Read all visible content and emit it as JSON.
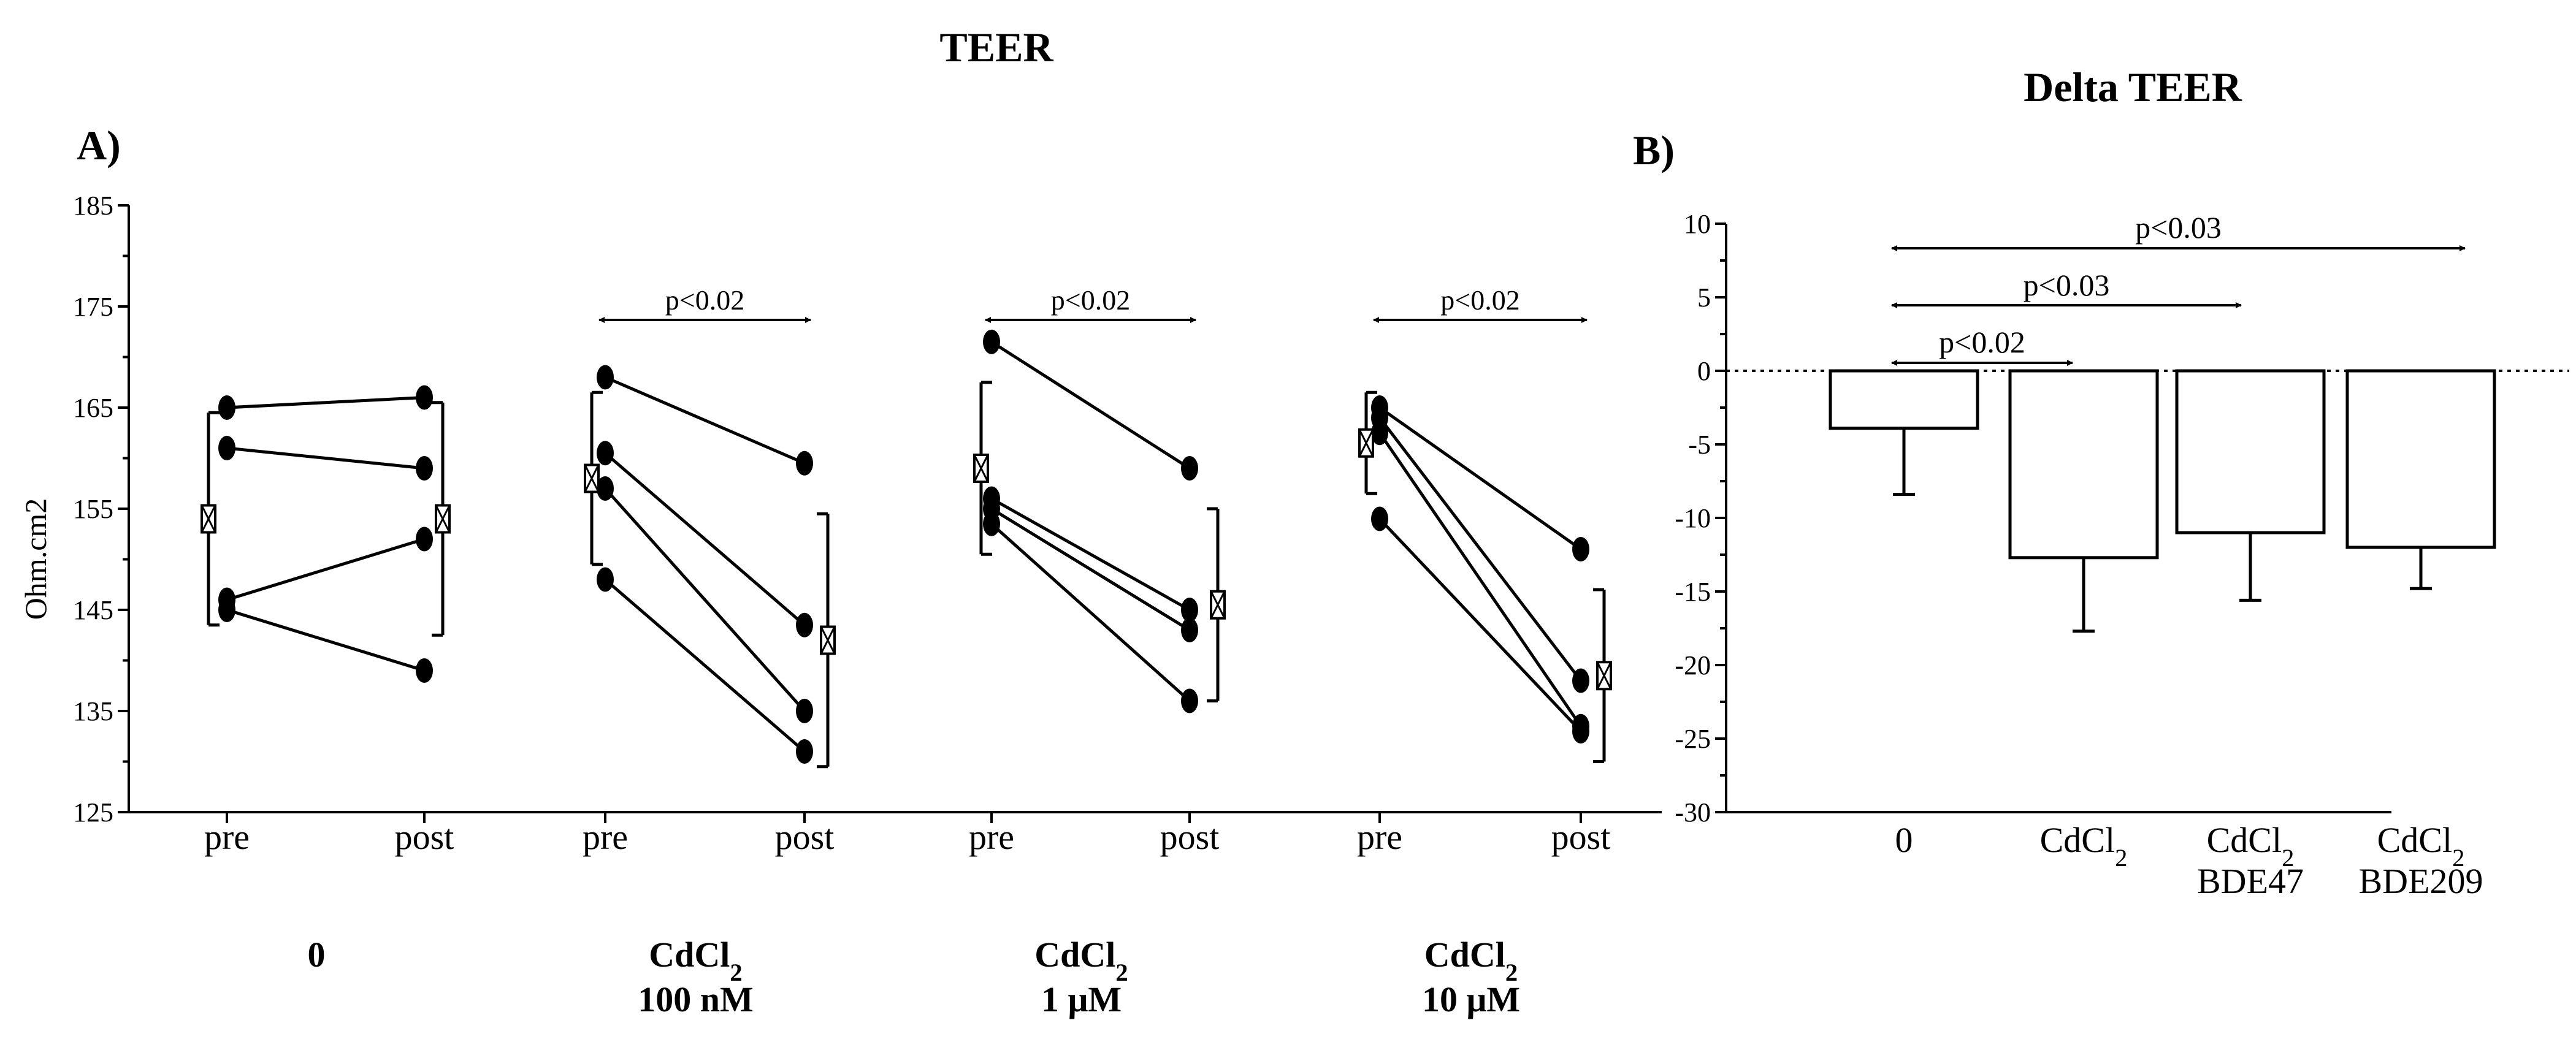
{
  "chart_data": [
    {
      "type": "line",
      "title": "TEER",
      "panel_label": "A)",
      "ylabel": "Ohm.cm2",
      "ylim": [
        125,
        185
      ],
      "yticks": [
        125,
        135,
        145,
        155,
        165,
        175,
        185
      ],
      "grid": false,
      "timepoints": [
        "pre",
        "post"
      ],
      "groups": [
        {
          "label_line1": "0",
          "label_sub": "",
          "label_line2": "",
          "subjects": [
            [
              165,
              166
            ],
            [
              161,
              159
            ],
            [
              146,
              152
            ],
            [
              145,
              139
            ]
          ],
          "mean": [
            154,
            154
          ],
          "error": [
            10.5,
            11.5
          ],
          "significance": ""
        },
        {
          "label_line1": "CdCl",
          "label_sub": "2",
          "label_line2": "100 nM",
          "subjects": [
            [
              168,
              159.5
            ],
            [
              160.5,
              143.5
            ],
            [
              157,
              135
            ],
            [
              148,
              131
            ]
          ],
          "mean": [
            158,
            142
          ],
          "error": [
            8.5,
            12.5
          ],
          "significance": "p<0.02"
        },
        {
          "label_line1": "CdCl",
          "label_sub": "2",
          "label_line2": "1 μM",
          "subjects": [
            [
              171.5,
              159
            ],
            [
              156,
              145
            ],
            [
              155,
              143
            ],
            [
              153.5,
              136
            ]
          ],
          "mean": [
            159,
            145.5
          ],
          "error": [
            8.5,
            9.5
          ],
          "significance": "p<0.02"
        },
        {
          "label_line1": "CdCl",
          "label_sub": "2",
          "label_line2": "10 μM",
          "subjects": [
            [
              165,
              151
            ],
            [
              164,
              138
            ],
            [
              162.5,
              133.5
            ],
            [
              154,
              133
            ]
          ],
          "mean": [
            161.5,
            138.5
          ],
          "error": [
            5,
            8.5
          ],
          "significance": "p<0.02"
        }
      ]
    },
    {
      "type": "bar",
      "title": "Delta TEER",
      "panel_label": "B)",
      "ylim": [
        -30,
        10
      ],
      "yticks": [
        10,
        5,
        0,
        -5,
        -10,
        -15,
        -20,
        -25,
        -30
      ],
      "grid": false,
      "reference_line": 0,
      "categories": [
        {
          "line1": "0",
          "sub": "",
          "line2": ""
        },
        {
          "line1": "CdCl",
          "sub": "2",
          "line2": ""
        },
        {
          "line1": "CdCl",
          "sub": "2",
          "line2": "BDE47"
        },
        {
          "line1": "CdCl",
          "sub": "2",
          "line2": "BDE209"
        }
      ],
      "values": [
        -3.9,
        -12.7,
        -11,
        -12
      ],
      "errors": [
        4.5,
        5,
        4.6,
        2.8
      ],
      "comparisons": [
        {
          "from": 0,
          "to": 1,
          "label": "p<0.02"
        },
        {
          "from": 0,
          "to": 2,
          "label": "p<0.03"
        },
        {
          "from": 0,
          "to": 3,
          "label": "p<0.03"
        }
      ]
    }
  ]
}
